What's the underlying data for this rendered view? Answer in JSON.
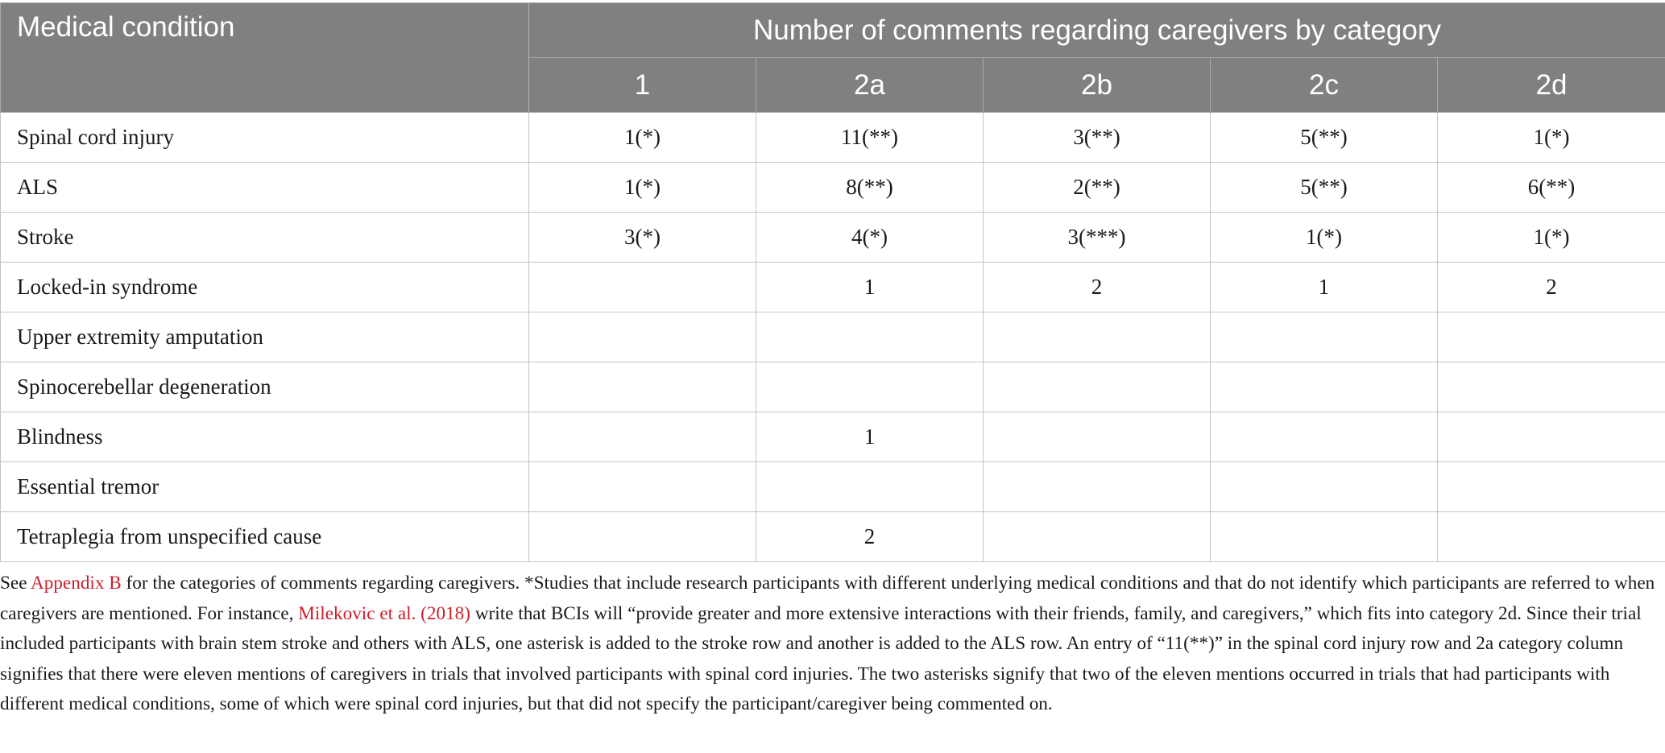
{
  "table": {
    "condition_header": "Medical condition",
    "group_header": "Number of comments regarding caregivers by category",
    "category_headers": [
      "1",
      "2a",
      "2b",
      "2c",
      "2d"
    ],
    "rows": [
      {
        "condition": "Spinal cord injury",
        "values": [
          "1(*)",
          "11(**)",
          "3(**)",
          "5(**)",
          "1(*)"
        ]
      },
      {
        "condition": "ALS",
        "values": [
          "1(*)",
          "8(**)",
          "2(**)",
          "5(**)",
          "6(**)"
        ]
      },
      {
        "condition": "Stroke",
        "values": [
          "3(*)",
          "4(*)",
          "3(***)",
          "1(*)",
          "1(*)"
        ]
      },
      {
        "condition": "Locked-in syndrome",
        "values": [
          "",
          "1",
          "2",
          "1",
          "2"
        ]
      },
      {
        "condition": "Upper extremity amputation",
        "values": [
          "",
          "",
          "",
          "",
          ""
        ]
      },
      {
        "condition": "Spinocerebellar degeneration",
        "values": [
          "",
          "",
          "",
          "",
          ""
        ]
      },
      {
        "condition": "Blindness",
        "values": [
          "",
          "1",
          "",
          "",
          ""
        ]
      },
      {
        "condition": "Essential tremor",
        "values": [
          "",
          "",
          "",
          "",
          ""
        ]
      },
      {
        "condition": "Tetraplegia from unspecified cause",
        "values": [
          "",
          "2",
          "",
          "",
          ""
        ]
      }
    ]
  },
  "footnote": {
    "part1": "See ",
    "link1": "Appendix B",
    "part2": " for the categories of comments regarding caregivers. *Studies that include research participants with different underlying medical conditions and that do not identify which participants are referred to when caregivers are mentioned. For instance, ",
    "link2": "Milekovic et al. (2018)",
    "part3": " write that BCIs will “provide greater and more extensive interactions with their friends, family, and caregivers,” which fits into category 2d. Since their trial included participants with brain stem stroke and others with ALS, one asterisk is added to the stroke row and another is added to the ALS row. An entry of “11(**)” in the spinal cord injury row and 2a category column signifies that there were eleven mentions of caregivers in trials that involved participants with spinal cord injuries. The two asterisks signify that two of the eleven mentions occurred in trials that had participants with different medical conditions, some of which were spinal cord injuries, but that did not specify the participant/caregiver being commented on."
  },
  "colors": {
    "header_bg": "#808080",
    "header_text": "#ffffff",
    "link": "#cc1f2b",
    "grid": "#c4c4c4"
  }
}
